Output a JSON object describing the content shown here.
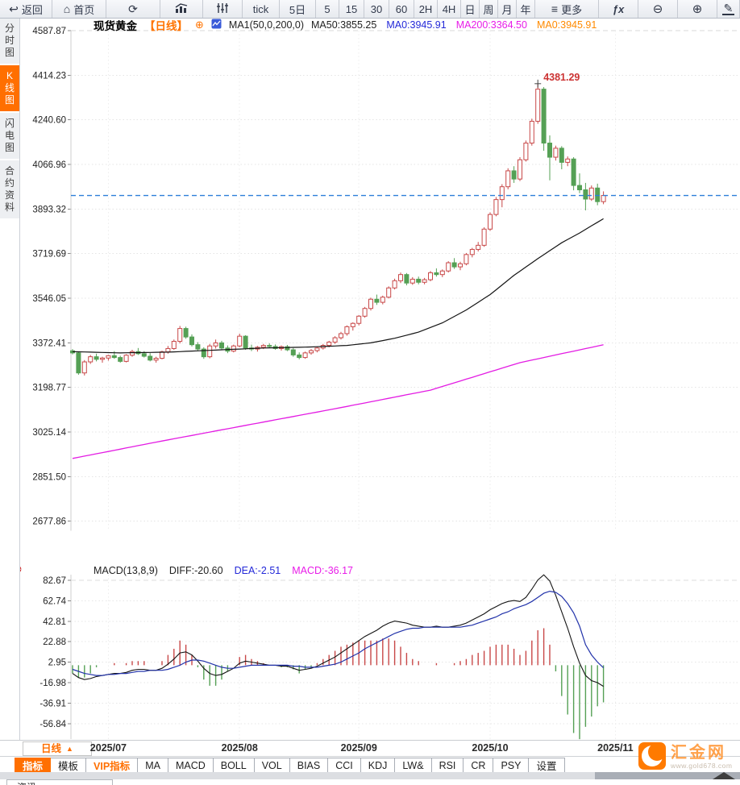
{
  "toolbar": {
    "items": [
      {
        "id": "back",
        "label": "返回",
        "icon": "back-arrow"
      },
      {
        "id": "home",
        "label": "首页",
        "icon": "home"
      },
      {
        "id": "refresh",
        "label": "",
        "icon": "refresh"
      },
      {
        "id": "chart-style-bar",
        "label": "",
        "icon": "bar-chart"
      },
      {
        "id": "chart-style-candle",
        "label": "",
        "icon": "sliders"
      },
      {
        "id": "tick",
        "label": "tick"
      },
      {
        "id": "5day",
        "label": "5日"
      },
      {
        "id": "min5",
        "label": "5"
      },
      {
        "id": "min15",
        "label": "15"
      },
      {
        "id": "min30",
        "label": "30"
      },
      {
        "id": "min60",
        "label": "60"
      },
      {
        "id": "hour2",
        "label": "2H"
      },
      {
        "id": "hour4",
        "label": "4H"
      },
      {
        "id": "day",
        "label": "日"
      },
      {
        "id": "week",
        "label": "周"
      },
      {
        "id": "month",
        "label": "月"
      },
      {
        "id": "year",
        "label": "年"
      },
      {
        "id": "more",
        "label": "更多",
        "icon": "menu"
      },
      {
        "id": "fx",
        "label": "ƒx",
        "class": "tb-fx"
      },
      {
        "id": "zoom-out",
        "label": "",
        "icon": "zoom-out"
      },
      {
        "id": "zoom-in",
        "label": "",
        "icon": "zoom-in"
      },
      {
        "id": "draw",
        "label": "",
        "icon": "pencil"
      }
    ]
  },
  "sidebar": {
    "tabs": [
      {
        "label": "分时图",
        "active": false
      },
      {
        "label": "K线图",
        "active": true
      },
      {
        "label": "闪电图",
        "active": false
      },
      {
        "label": "合约资料",
        "active": false
      }
    ]
  },
  "chart_header": {
    "symbol": "现货黄金",
    "period_tag": "【日线】",
    "ma_settings": "MA1(50,0,200,0)",
    "ma_values": [
      {
        "label": "MA50:3855.25",
        "color": "#222222"
      },
      {
        "label": "MA0:3945.91",
        "color": "#2328d8"
      },
      {
        "label": "MA200:3364.50",
        "color": "#e81ce8"
      },
      {
        "label": "MA0:3945.91",
        "color": "#ff8a00"
      }
    ]
  },
  "macd_header": {
    "title": "MACD(13,8,9)",
    "values": [
      {
        "label": "DIFF:-20.60",
        "color": "#222222"
      },
      {
        "label": "DEA:-2.51",
        "color": "#2328d8"
      },
      {
        "label": "MACD:-36.17",
        "color": "#e81ce8"
      }
    ]
  },
  "chart_data": {
    "type": "candlestick+macd",
    "title": "现货黄金 日线 (Spot Gold Daily)",
    "y_ticks": [
      4587.87,
      4414.23,
      4240.6,
      4066.96,
      3893.32,
      3719.69,
      3546.05,
      3372.41,
      3198.77,
      3025.14,
      2851.5,
      2677.86
    ],
    "macd_ticks": [
      82.67,
      62.74,
      42.81,
      22.88,
      2.95,
      -16.98,
      -36.91,
      -56.84
    ],
    "current_price": 3945.91,
    "peak_annotation": {
      "index": 78,
      "price": 4381.29,
      "label": "4381.29"
    },
    "x_month_labels": [
      {
        "label": "2025/07",
        "index": 6
      },
      {
        "label": "2025/08",
        "index": 28
      },
      {
        "label": "2025/09",
        "index": 48
      },
      {
        "label": "2025/10",
        "index": 70
      },
      {
        "label": "2025/11",
        "index": 91
      }
    ],
    "candles": [
      [
        3341,
        3348,
        3327,
        3333
      ],
      [
        3333,
        3336,
        3248,
        3255
      ],
      [
        3255,
        3305,
        3245,
        3298
      ],
      [
        3298,
        3325,
        3290,
        3318
      ],
      [
        3318,
        3330,
        3300,
        3308
      ],
      [
        3308,
        3318,
        3295,
        3313
      ],
      [
        3313,
        3325,
        3303,
        3322
      ],
      [
        3322,
        3340,
        3310,
        3315
      ],
      [
        3315,
        3322,
        3295,
        3300
      ],
      [
        3300,
        3328,
        3296,
        3324
      ],
      [
        3324,
        3345,
        3318,
        3338
      ],
      [
        3338,
        3352,
        3325,
        3330
      ],
      [
        3330,
        3340,
        3315,
        3320
      ],
      [
        3320,
        3332,
        3300,
        3305
      ],
      [
        3305,
        3318,
        3295,
        3312
      ],
      [
        3312,
        3342,
        3308,
        3337
      ],
      [
        3337,
        3360,
        3330,
        3350
      ],
      [
        3350,
        3385,
        3345,
        3378
      ],
      [
        3378,
        3438,
        3370,
        3428
      ],
      [
        3428,
        3435,
        3388,
        3395
      ],
      [
        3395,
        3405,
        3358,
        3365
      ],
      [
        3365,
        3375,
        3340,
        3348
      ],
      [
        3348,
        3355,
        3310,
        3318
      ],
      [
        3318,
        3368,
        3312,
        3360
      ],
      [
        3360,
        3385,
        3350,
        3372
      ],
      [
        3372,
        3380,
        3345,
        3352
      ],
      [
        3352,
        3362,
        3332,
        3340
      ],
      [
        3340,
        3365,
        3335,
        3360
      ],
      [
        3360,
        3408,
        3355,
        3398
      ],
      [
        3398,
        3402,
        3345,
        3352
      ],
      [
        3352,
        3365,
        3340,
        3348
      ],
      [
        3348,
        3360,
        3338,
        3355
      ],
      [
        3355,
        3368,
        3348,
        3362
      ],
      [
        3362,
        3370,
        3352,
        3358
      ],
      [
        3358,
        3366,
        3345,
        3350
      ],
      [
        3350,
        3362,
        3342,
        3357
      ],
      [
        3357,
        3364,
        3340,
        3345
      ],
      [
        3345,
        3352,
        3318,
        3325
      ],
      [
        3325,
        3335,
        3308,
        3315
      ],
      [
        3315,
        3338,
        3310,
        3333
      ],
      [
        3333,
        3348,
        3326,
        3342
      ],
      [
        3342,
        3356,
        3335,
        3352
      ],
      [
        3352,
        3368,
        3346,
        3362
      ],
      [
        3362,
        3380,
        3355,
        3375
      ],
      [
        3375,
        3398,
        3368,
        3392
      ],
      [
        3392,
        3415,
        3385,
        3408
      ],
      [
        3408,
        3440,
        3400,
        3435
      ],
      [
        3435,
        3452,
        3420,
        3448
      ],
      [
        3448,
        3480,
        3440,
        3476
      ],
      [
        3476,
        3512,
        3470,
        3506
      ],
      [
        3506,
        3548,
        3498,
        3542
      ],
      [
        3542,
        3560,
        3520,
        3530
      ],
      [
        3530,
        3556,
        3522,
        3550
      ],
      [
        3550,
        3592,
        3545,
        3586
      ],
      [
        3586,
        3622,
        3580,
        3614
      ],
      [
        3614,
        3646,
        3605,
        3638
      ],
      [
        3638,
        3644,
        3596,
        3605
      ],
      [
        3605,
        3628,
        3598,
        3620
      ],
      [
        3620,
        3630,
        3600,
        3608
      ],
      [
        3608,
        3625,
        3600,
        3618
      ],
      [
        3618,
        3652,
        3612,
        3645
      ],
      [
        3645,
        3662,
        3630,
        3638
      ],
      [
        3638,
        3658,
        3628,
        3652
      ],
      [
        3652,
        3690,
        3646,
        3684
      ],
      [
        3684,
        3702,
        3660,
        3668
      ],
      [
        3668,
        3688,
        3655,
        3680
      ],
      [
        3680,
        3722,
        3674,
        3716
      ],
      [
        3716,
        3742,
        3705,
        3736
      ],
      [
        3736,
        3765,
        3728,
        3752
      ],
      [
        3752,
        3822,
        3746,
        3815
      ],
      [
        3815,
        3880,
        3808,
        3872
      ],
      [
        3872,
        3940,
        3865,
        3930
      ],
      [
        3930,
        3990,
        3900,
        3980
      ],
      [
        3980,
        4052,
        3970,
        4042
      ],
      [
        4042,
        4060,
        3995,
        4010
      ],
      [
        4010,
        4095,
        4002,
        4085
      ],
      [
        4085,
        4160,
        4078,
        4150
      ],
      [
        4150,
        4245,
        4140,
        4235
      ],
      [
        4235,
        4381.29,
        4225,
        4360
      ],
      [
        4360,
        4368,
        4120,
        4150
      ],
      [
        4150,
        4180,
        4005,
        4095
      ],
      [
        4095,
        4140,
        4082,
        4130
      ],
      [
        4130,
        4138,
        4048,
        4075
      ],
      [
        4075,
        4098,
        4060,
        4088
      ],
      [
        4088,
        4095,
        3966,
        3985
      ],
      [
        3985,
        4032,
        3955,
        3968
      ],
      [
        3968,
        3995,
        3888,
        3932
      ],
      [
        3932,
        3985,
        3925,
        3975
      ],
      [
        3975,
        3992,
        3908,
        3922
      ],
      [
        3922,
        3962,
        3912,
        3945.91
      ]
    ],
    "ma50_knots": [
      [
        0,
        3338
      ],
      [
        8,
        3333
      ],
      [
        16,
        3336
      ],
      [
        24,
        3344
      ],
      [
        32,
        3352
      ],
      [
        40,
        3356
      ],
      [
        46,
        3362
      ],
      [
        50,
        3372
      ],
      [
        54,
        3390
      ],
      [
        58,
        3414
      ],
      [
        62,
        3450
      ],
      [
        66,
        3500
      ],
      [
        70,
        3560
      ],
      [
        74,
        3635
      ],
      [
        78,
        3700
      ],
      [
        82,
        3762
      ],
      [
        85,
        3800
      ],
      [
        87,
        3828
      ],
      [
        89,
        3855.25
      ]
    ],
    "ma200_knots": [
      [
        0,
        2922
      ],
      [
        15,
        2990
      ],
      [
        30,
        3055
      ],
      [
        45,
        3120
      ],
      [
        60,
        3188
      ],
      [
        75,
        3295
      ],
      [
        82,
        3330
      ],
      [
        89,
        3364.5
      ]
    ],
    "macd": {
      "diff": [
        -8,
        -12,
        -14,
        -13,
        -11,
        -10,
        -9,
        -8,
        -8,
        -7,
        -5,
        -4,
        -4,
        -5,
        -5,
        -3,
        1,
        6,
        12,
        13,
        10,
        4,
        -3,
        -8,
        -10,
        -9,
        -6,
        -3,
        2,
        4,
        3,
        2,
        1,
        0,
        0,
        -1,
        -1,
        -3,
        -5,
        -4,
        -3,
        -1,
        2,
        5,
        8,
        12,
        16,
        20,
        24,
        28,
        31,
        34,
        38,
        41,
        43,
        42,
        41,
        39,
        38,
        37,
        37,
        38,
        37,
        37,
        38,
        39,
        41,
        44,
        47,
        50,
        54,
        57,
        60,
        62,
        63,
        62,
        66,
        74,
        83,
        88,
        82,
        68,
        52,
        36,
        18,
        2,
        -10,
        -15,
        -17,
        -20.6
      ],
      "dea": [
        -4,
        -6,
        -8,
        -9,
        -10,
        -10,
        -9,
        -9,
        -8,
        -8,
        -7,
        -6,
        -6,
        -5,
        -5,
        -5,
        -4,
        -2,
        0,
        3,
        5,
        5,
        4,
        2,
        0,
        -2,
        -3,
        -3,
        -2,
        -1,
        0,
        0,
        0,
        0,
        0,
        0,
        0,
        -1,
        -1,
        -2,
        -2,
        -2,
        -1,
        0,
        1,
        3,
        6,
        9,
        12,
        16,
        19,
        22,
        25,
        28,
        31,
        33,
        35,
        36,
        36,
        37,
        37,
        37,
        37,
        37,
        37,
        37,
        38,
        39,
        41,
        43,
        45,
        47,
        50,
        52,
        55,
        57,
        59,
        62,
        66,
        70,
        72,
        71,
        67,
        60,
        51,
        38,
        20,
        10,
        3,
        -2.51
      ]
    },
    "legend": [
      "MA50 (black)",
      "MA200 (magenta)",
      "DIFF (black)",
      "DEA (blue)",
      "MACD histogram (red/green)"
    ],
    "grid": true
  },
  "bottom": {
    "period_label": "日线",
    "tabs": [
      {
        "label": "指标",
        "active": true
      },
      {
        "label": "模板"
      },
      {
        "label": "VIP指标",
        "vip": true
      },
      {
        "label": "MA"
      },
      {
        "label": "MACD"
      },
      {
        "label": "BOLL"
      },
      {
        "label": "VOL"
      },
      {
        "label": "BIAS"
      },
      {
        "label": "CCI"
      },
      {
        "label": "KDJ"
      },
      {
        "label": "LW&"
      },
      {
        "label": "RSI"
      },
      {
        "label": "CR"
      },
      {
        "label": "PSY"
      },
      {
        "label": "设置"
      }
    ],
    "news_tab": "资讯"
  },
  "logo": {
    "name": "汇金网",
    "url": "www.gold678.com"
  },
  "colors": {
    "accent_orange": "#ff6f00",
    "up_red": "#c84848",
    "down_green": "#55a055",
    "ma50": "#141414",
    "ma200": "#e31ce3",
    "dea_blue": "#2233aa",
    "price_line_blue": "#2d7fd9",
    "annotation_red": "#cc3333"
  }
}
